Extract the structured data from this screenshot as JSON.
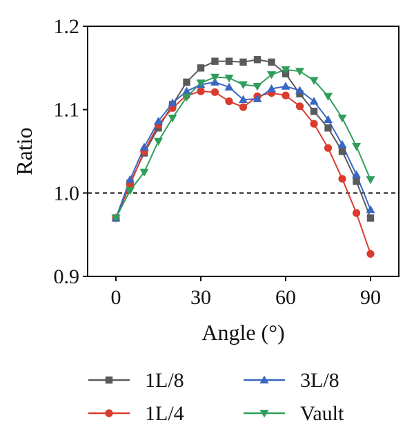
{
  "chart_data": {
    "type": "line",
    "title": "",
    "xlabel": "Angle (°)",
    "ylabel": "Ratio",
    "xlim": [
      -10,
      100
    ],
    "ylim": [
      0.9,
      1.2
    ],
    "xticks": [
      0,
      30,
      60,
      90
    ],
    "xtick_labels": [
      "0",
      "30",
      "60",
      "90"
    ],
    "yticks": [
      0.9,
      1.0,
      1.1,
      1.2
    ],
    "ytick_labels": [
      "0.9",
      "1.0",
      "1.1",
      "1.2"
    ],
    "reference_line": {
      "y": 1.0,
      "style": "dashed"
    },
    "grid": false,
    "legend_position": "bottom",
    "x": [
      0,
      5,
      10,
      15,
      20,
      25,
      30,
      35,
      40,
      45,
      50,
      55,
      60,
      65,
      70,
      75,
      80,
      85,
      90
    ],
    "series": [
      {
        "name": "1L/8",
        "color": "#5a5a5a",
        "marker": "square",
        "values": [
          0.97,
          1.012,
          1.048,
          1.078,
          1.106,
          1.133,
          1.15,
          1.158,
          1.158,
          1.157,
          1.16,
          1.157,
          1.143,
          1.119,
          1.098,
          1.078,
          1.05,
          1.014,
          0.97
        ]
      },
      {
        "name": "1L/4",
        "color": "#d93b2f",
        "marker": "circle",
        "values": [
          0.97,
          1.01,
          1.05,
          1.082,
          1.102,
          1.117,
          1.122,
          1.121,
          1.11,
          1.103,
          1.116,
          1.12,
          1.117,
          1.104,
          1.083,
          1.054,
          1.017,
          0.976,
          0.927
        ]
      },
      {
        "name": "3L/8",
        "color": "#3a66c4",
        "marker": "triangle-up",
        "values": [
          0.97,
          1.016,
          1.055,
          1.086,
          1.108,
          1.122,
          1.13,
          1.133,
          1.127,
          1.112,
          1.113,
          1.125,
          1.128,
          1.123,
          1.11,
          1.088,
          1.058,
          1.022,
          0.98
        ]
      },
      {
        "name": "Vault",
        "color": "#2e9e5a",
        "marker": "triangle-down",
        "values": [
          0.97,
          1.003,
          1.025,
          1.062,
          1.09,
          1.115,
          1.132,
          1.139,
          1.138,
          1.13,
          1.128,
          1.142,
          1.148,
          1.146,
          1.135,
          1.116,
          1.09,
          1.056,
          1.016
        ]
      }
    ]
  }
}
